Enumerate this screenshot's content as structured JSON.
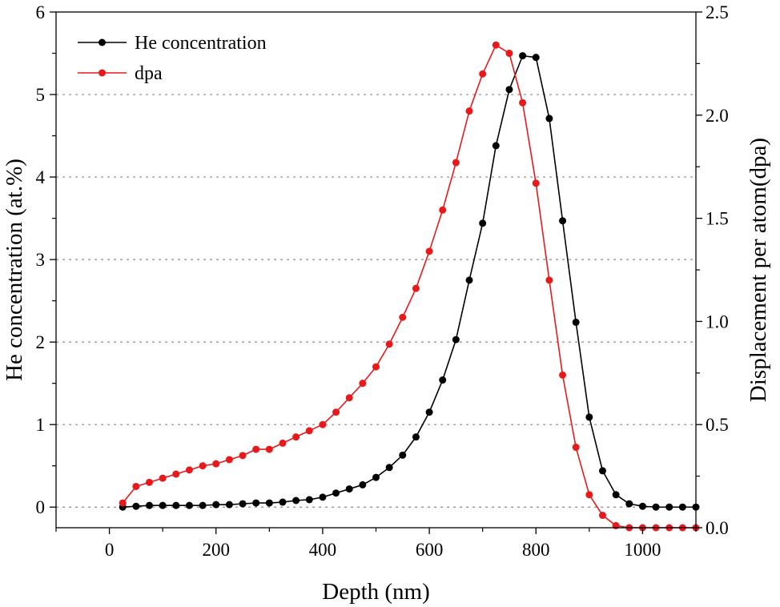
{
  "chart_data": {
    "type": "line",
    "xlabel": "Depth (nm)",
    "ylabel": "He concentration (at.%)",
    "y2label": "Displacement per atom(dpa)",
    "xlim": [
      -100,
      1100
    ],
    "ylim": [
      -0.25,
      6
    ],
    "y2lim": [
      0,
      2.5
    ],
    "x_ticks": [
      "0",
      "200",
      "400",
      "600",
      "800",
      "1000"
    ],
    "y_ticks": [
      "0",
      "1",
      "2",
      "3",
      "4",
      "5",
      "6"
    ],
    "y2_ticks": [
      "0.0",
      "0.5",
      "1.0",
      "1.5",
      "2.0",
      "2.5"
    ],
    "grid": "horizontal dotted at left-axis major ticks",
    "legend_position": "top-left",
    "series": [
      {
        "name": "He concentration",
        "axis": "left",
        "color": "#000000",
        "x": [
          25,
          50,
          75,
          100,
          125,
          150,
          175,
          200,
          225,
          250,
          275,
          300,
          325,
          350,
          375,
          400,
          425,
          450,
          475,
          500,
          525,
          550,
          575,
          600,
          625,
          650,
          675,
          700,
          725,
          750,
          775,
          800,
          825,
          850,
          875,
          900,
          925,
          950,
          975,
          1000,
          1025,
          1050,
          1075,
          1100
        ],
        "values": [
          0,
          0.01,
          0.02,
          0.02,
          0.02,
          0.02,
          0.02,
          0.03,
          0.03,
          0.04,
          0.05,
          0.05,
          0.06,
          0.08,
          0.09,
          0.12,
          0.17,
          0.22,
          0.27,
          0.36,
          0.48,
          0.63,
          0.85,
          1.15,
          1.54,
          2.03,
          2.75,
          3.44,
          4.38,
          5.06,
          5.47,
          5.45,
          4.71,
          3.47,
          2.24,
          1.09,
          0.44,
          0.15,
          0.04,
          0.01,
          0,
          0,
          0,
          0
        ]
      },
      {
        "name": "dpa",
        "axis": "right",
        "color": "#e8191b",
        "x": [
          25,
          50,
          75,
          100,
          125,
          150,
          175,
          200,
          225,
          250,
          275,
          300,
          325,
          350,
          375,
          400,
          425,
          450,
          475,
          500,
          525,
          550,
          575,
          600,
          625,
          650,
          675,
          700,
          725,
          750,
          775,
          800,
          825,
          850,
          875,
          900,
          925,
          950,
          975,
          1000,
          1025,
          1050,
          1075,
          1100
        ],
        "values": [
          0.12,
          0.2,
          0.22,
          0.24,
          0.26,
          0.28,
          0.3,
          0.31,
          0.33,
          0.35,
          0.38,
          0.38,
          0.41,
          0.44,
          0.47,
          0.5,
          0.56,
          0.63,
          0.7,
          0.78,
          0.89,
          1.02,
          1.16,
          1.34,
          1.54,
          1.77,
          2.02,
          2.2,
          2.34,
          2.3,
          2.06,
          1.67,
          1.2,
          0.74,
          0.39,
          0.16,
          0.06,
          0.01,
          0.0,
          0.0,
          0.0,
          0.0,
          0.0,
          0.0
        ]
      }
    ]
  }
}
